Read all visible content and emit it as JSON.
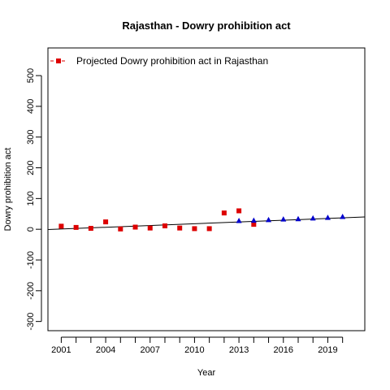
{
  "chart_data": {
    "type": "scatter",
    "title": "Rajasthan  -  Dowry prohibition act",
    "xlabel": "Year",
    "ylabel": "Dowry prohibition act",
    "xlim": [
      2000.1,
      2021.5
    ],
    "ylim": [
      -330,
      590
    ],
    "x_ticks": [
      2001,
      2002,
      2003,
      2004,
      2005,
      2006,
      2007,
      2008,
      2009,
      2010,
      2011,
      2012,
      2013,
      2014,
      2015,
      2016,
      2017,
      2018,
      2019,
      2020
    ],
    "x_tick_labels": [
      {
        "x": 2001,
        "label": "2001"
      },
      {
        "x": 2004,
        "label": "2004"
      },
      {
        "x": 2007,
        "label": "2007"
      },
      {
        "x": 2010,
        "label": "2010"
      },
      {
        "x": 2013,
        "label": "2013"
      },
      {
        "x": 2016,
        "label": "2016"
      },
      {
        "x": 2019,
        "label": "2019"
      }
    ],
    "y_ticks": [
      -300,
      -200,
      -100,
      0,
      100,
      200,
      300,
      400,
      500
    ],
    "y_tick_labels": [
      "-300",
      "-200",
      "-100",
      "0",
      "100",
      "200",
      "300",
      "400",
      "500"
    ],
    "grid": false,
    "legend": {
      "position": "top-left",
      "entries": [
        {
          "label": "Projected  Dowry prohibition act  in  Rajasthan",
          "color": "#dd0000",
          "marker": "square",
          "line": "dashed"
        }
      ]
    },
    "series": [
      {
        "name": "Projected  Dowry prohibition act  in  Rajasthan",
        "color": "#dd0000",
        "marker": "square",
        "x": [
          2001,
          2002,
          2003,
          2004,
          2005,
          2006,
          2007,
          2008,
          2009,
          2010,
          2011,
          2012,
          2013,
          2014
        ],
        "y": [
          10,
          6,
          3,
          24,
          1,
          7,
          4,
          11,
          4,
          2,
          2,
          53,
          60,
          16
        ]
      },
      {
        "color": "#0000cc",
        "marker": "triangle",
        "x": [
          2013,
          2014,
          2015,
          2016,
          2017,
          2018,
          2019,
          2020
        ],
        "y": [
          27,
          28,
          30,
          32,
          33,
          35,
          37,
          40
        ]
      }
    ],
    "trend_line": {
      "x": [
        2000.1,
        2021.5
      ],
      "y": [
        -1,
        40
      ],
      "color": "#000000"
    }
  }
}
